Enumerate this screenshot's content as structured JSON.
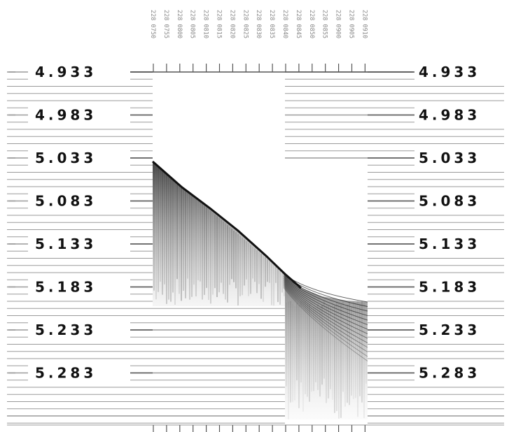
{
  "record": {
    "time_labels": [
      "228 0750",
      "228 0755",
      "228 0800",
      "228 0805",
      "228 0810",
      "228 0815",
      "228 0820",
      "228 0825",
      "228 0830",
      "228 0835",
      "228 0840",
      "228 0845",
      "228 0850",
      "228 0855",
      "228 0900",
      "228 0905",
      "228 0910"
    ],
    "depth_labels": [
      "4.933",
      "4.983",
      "5.033",
      "5.083",
      "5.133",
      "5.183",
      "5.233",
      "5.283"
    ],
    "colors": {
      "background": "#ffffff",
      "line": "#9a9a9a",
      "text": "#111111",
      "trace": "#1a1a1a"
    },
    "scale_repeated_both_sides": true
  }
}
